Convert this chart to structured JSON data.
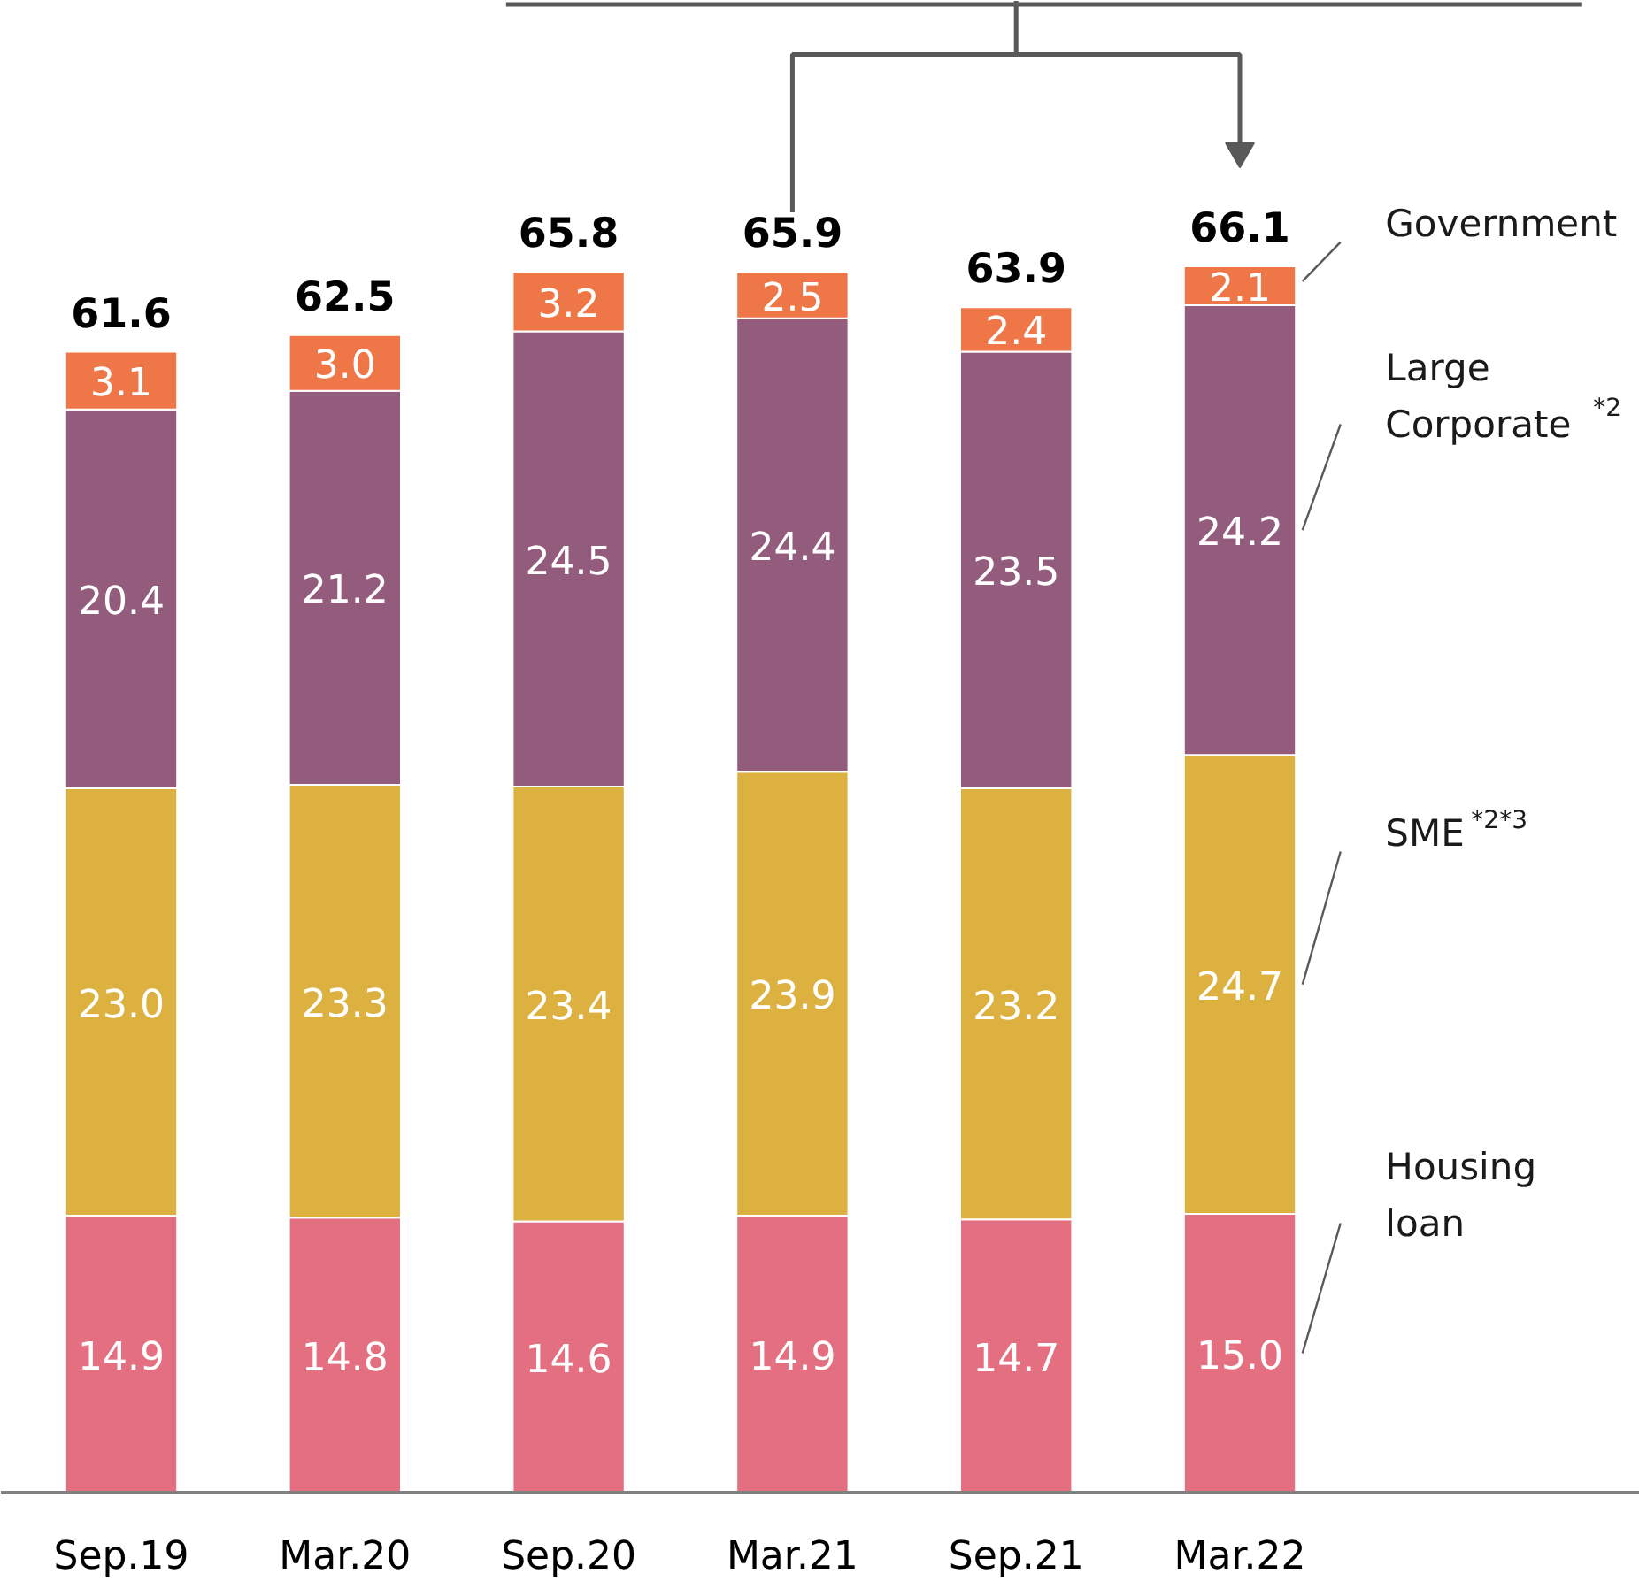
{
  "chart_data": {
    "type": "bar",
    "stacked": true,
    "categories": [
      "Sep.19",
      "Mar.20",
      "Sep.20",
      "Mar.21",
      "Sep.21",
      "Mar.22"
    ],
    "series": [
      {
        "name": "Housing\nloan",
        "color": "#e36f80",
        "values": [
          14.9,
          14.8,
          14.6,
          14.9,
          14.7,
          15.0
        ],
        "value_labels": [
          "14.9",
          "14.8",
          "14.6",
          "14.9",
          "14.7",
          "15.0"
        ]
      },
      {
        "name": "SME$^{*2*3}$",
        "color": "#dcb13f",
        "values": [
          23.0,
          23.3,
          23.4,
          23.9,
          23.2,
          24.7
        ],
        "value_labels": [
          "23.0",
          "23.3",
          "23.4",
          "23.9",
          "23.2",
          "24.7"
        ]
      },
      {
        "name": "Large\nCorporate$^{*2}$",
        "color": "#935c7d",
        "values": [
          20.4,
          21.2,
          24.5,
          24.4,
          23.5,
          24.2
        ],
        "value_labels": [
          "20.4",
          "21.2",
          "24.5",
          "24.4",
          "23.5",
          "24.2"
        ]
      },
      {
        "name": "Government",
        "color": "#ef7747",
        "values": [
          3.1,
          3.0,
          3.2,
          2.5,
          2.4,
          2.1
        ],
        "value_labels": [
          "3.1",
          "3.0",
          "3.2",
          "2.5",
          "2.4",
          "2.1"
        ]
      }
    ],
    "totals": [
      "61.6",
      "62.5",
      "65.8",
      "65.9",
      "63.9",
      "66.1"
    ]
  }
}
